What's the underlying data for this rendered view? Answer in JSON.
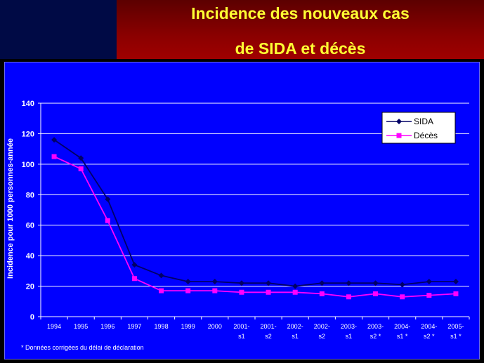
{
  "slide": {
    "title_line1": "Incidence des nouveaux cas",
    "title_line2": "de SIDA et décès",
    "footnote": "* Données corrigées du délai de déclaration"
  },
  "colors": {
    "background": "#0000ff",
    "sida": "#000066",
    "deces": "#ff00ff",
    "title": "#ffff33"
  },
  "chart_data": {
    "type": "line",
    "ylabel": "Incidence pour 1000 personnes-année",
    "ylim": [
      0,
      140
    ],
    "yticks": [
      0,
      20,
      40,
      60,
      80,
      100,
      120,
      140
    ],
    "grid": true,
    "legend_position": "top-right",
    "categories": [
      [
        "1994"
      ],
      [
        "1995"
      ],
      [
        "1996"
      ],
      [
        "1997"
      ],
      [
        "1998"
      ],
      [
        "1999"
      ],
      [
        "2000"
      ],
      [
        "2001-",
        "s1"
      ],
      [
        "2001-",
        "s2"
      ],
      [
        "2002-",
        "s1"
      ],
      [
        "2002-",
        "s2"
      ],
      [
        "2003-",
        "s1"
      ],
      [
        "2003-",
        "s2 *"
      ],
      [
        "2004-",
        "s1 *"
      ],
      [
        "2004-",
        "s2 *"
      ],
      [
        "2005-",
        "s1 *"
      ]
    ],
    "series": [
      {
        "name": "SIDA",
        "marker": "diamond",
        "values": [
          116,
          104,
          77,
          34,
          27,
          23,
          23,
          22,
          22,
          20,
          22,
          22,
          22,
          21,
          23,
          23
        ]
      },
      {
        "name": "Décès",
        "marker": "square",
        "values": [
          105,
          97,
          63,
          25,
          17,
          17,
          17,
          16,
          16,
          16,
          15,
          13,
          15,
          13,
          14,
          15
        ]
      }
    ]
  }
}
